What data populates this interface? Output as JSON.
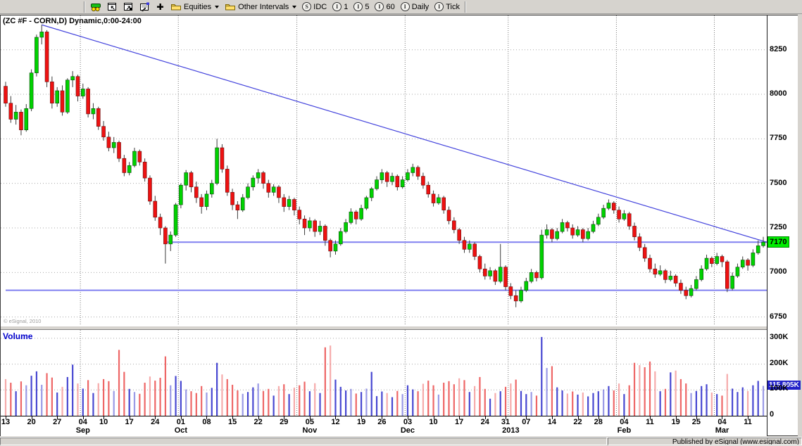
{
  "toolbar": {
    "equities_label": "Equities",
    "other_intervals_label": "Other Intervals",
    "idc_label": "IDC",
    "interval_1": "1",
    "interval_5": "5",
    "interval_60": "60",
    "interval_daily": "Daily",
    "interval_tick": "Tick"
  },
  "chart": {
    "title": "(ZC #F - CORN,D) Dynamic,0:00-24:00",
    "copyright": "© eSignal, 2010",
    "volume_label": "Volume",
    "last_price_tag": "7170",
    "last_volume_tag": "115.805K"
  },
  "status_bar": {
    "text": "Published by eSignal (www.esignal.com)"
  },
  "colors": {
    "up": "#00d200",
    "up_stroke": "#114411",
    "down": "#ee1111",
    "down_stroke": "#661111",
    "wick": "#3c3c3c",
    "vol_up": "#4747d1",
    "vol_down": "#ee6666",
    "trend": "#4444dd",
    "hline": "#8080f0",
    "grid": "#a8a8a8",
    "price_tag_bg": "#00ee00",
    "vol_tag_bg": "#2222c8"
  },
  "chart_data": {
    "type": "candlestick-with-volume",
    "symbol": "ZC #F - CORN, Daily",
    "price_axis": {
      "ticks": [
        8250,
        8000,
        7750,
        7500,
        7250,
        7000,
        6750
      ],
      "last_price": 7170
    },
    "volume_axis": {
      "ticks": [
        [
          300,
          "300K"
        ],
        [
          200,
          "200K"
        ],
        [
          100,
          "100K"
        ],
        [
          0,
          "0"
        ]
      ],
      "last_volume_k": 115.805
    },
    "x_labels": [
      [
        0,
        "13"
      ],
      [
        5,
        "20"
      ],
      [
        10,
        "27"
      ],
      [
        15,
        "04"
      ],
      [
        19,
        "10"
      ],
      [
        24,
        "17"
      ],
      [
        29,
        "24"
      ],
      [
        34,
        "01"
      ],
      [
        39,
        "08"
      ],
      [
        44,
        "15"
      ],
      [
        49,
        "22"
      ],
      [
        54,
        "29"
      ],
      [
        59,
        "05"
      ],
      [
        64,
        "12"
      ],
      [
        69,
        "19"
      ],
      [
        73,
        "26"
      ],
      [
        78,
        "03"
      ],
      [
        83,
        "10"
      ],
      [
        88,
        "17"
      ],
      [
        93,
        "24"
      ],
      [
        97,
        "31"
      ],
      [
        101,
        "07"
      ],
      [
        106,
        "14"
      ],
      [
        111,
        "22"
      ],
      [
        115,
        "28"
      ],
      [
        120,
        "04"
      ],
      [
        125,
        "11"
      ],
      [
        130,
        "19"
      ],
      [
        134,
        "25"
      ],
      [
        139,
        "04"
      ],
      [
        144,
        "11"
      ]
    ],
    "month_labels": [
      [
        15,
        "Sep"
      ],
      [
        34,
        "Oct"
      ],
      [
        59,
        "Nov"
      ],
      [
        78,
        "Dec"
      ],
      [
        98,
        "2013"
      ],
      [
        120,
        "Feb"
      ],
      [
        139,
        "Mar"
      ]
    ],
    "month_dividers": [
      15,
      34,
      57,
      78,
      98,
      119,
      138
    ],
    "overlays": {
      "trendline": {
        "from_index": 7,
        "from_price": 8390,
        "to_price": 7170
      },
      "hlines": [
        {
          "price": 7170,
          "from_index": 31
        },
        {
          "price": 6900,
          "from_index": 0
        }
      ]
    },
    "candles_format": [
      "open",
      "high",
      "low",
      "close",
      "volume_k"
    ],
    "candles": [
      [
        8045,
        8070,
        7930,
        7950,
        142
      ],
      [
        7950,
        7990,
        7840,
        7860,
        128
      ],
      [
        7860,
        7940,
        7830,
        7900,
        95
      ],
      [
        7900,
        7915,
        7770,
        7800,
        133
      ],
      [
        7800,
        7945,
        7790,
        7920,
        118
      ],
      [
        7920,
        8140,
        7905,
        8120,
        155
      ],
      [
        8120,
        8335,
        8100,
        8320,
        172
      ],
      [
        8320,
        8390,
        8280,
        8350,
        120
      ],
      [
        8350,
        8360,
        8040,
        8070,
        165
      ],
      [
        8070,
        8100,
        7920,
        7950,
        148
      ],
      [
        7950,
        8040,
        7930,
        8020,
        90
      ],
      [
        8020,
        8050,
        7880,
        7900,
        112
      ],
      [
        7900,
        8090,
        7890,
        8080,
        150
      ],
      [
        8080,
        8130,
        8040,
        8100,
        198
      ],
      [
        8100,
        8110,
        7960,
        7990,
        125
      ],
      [
        7990,
        8060,
        7975,
        8030,
        105
      ],
      [
        8030,
        8040,
        7870,
        7890,
        138
      ],
      [
        7890,
        7950,
        7860,
        7920,
        88
      ],
      [
        7920,
        7930,
        7800,
        7820,
        126
      ],
      [
        7820,
        7850,
        7740,
        7760,
        142
      ],
      [
        7760,
        7790,
        7680,
        7700,
        134
      ],
      [
        7700,
        7760,
        7670,
        7730,
        96
      ],
      [
        7730,
        7740,
        7620,
        7640,
        255
      ],
      [
        7640,
        7660,
        7540,
        7560,
        170
      ],
      [
        7560,
        7620,
        7545,
        7600,
        104
      ],
      [
        7600,
        7700,
        7590,
        7680,
        92
      ],
      [
        7680,
        7690,
        7600,
        7620,
        85
      ],
      [
        7620,
        7640,
        7510,
        7530,
        128
      ],
      [
        7530,
        7545,
        7380,
        7400,
        152
      ],
      [
        7400,
        7430,
        7290,
        7310,
        136
      ],
      [
        7310,
        7330,
        7210,
        7250,
        147
      ],
      [
        7250,
        7260,
        7050,
        7160,
        230
      ],
      [
        7160,
        7230,
        7120,
        7210,
        118
      ],
      [
        7210,
        7390,
        7200,
        7380,
        154
      ],
      [
        7380,
        7500,
        7360,
        7490,
        135
      ],
      [
        7490,
        7575,
        7460,
        7560,
        102
      ],
      [
        7560,
        7570,
        7450,
        7480,
        95
      ],
      [
        7480,
        7510,
        7390,
        7420,
        88
      ],
      [
        7420,
        7440,
        7330,
        7370,
        115
      ],
      [
        7370,
        7460,
        7350,
        7440,
        90
      ],
      [
        7440,
        7520,
        7420,
        7500,
        108
      ],
      [
        7500,
        7750,
        7490,
        7700,
        205
      ],
      [
        7700,
        7720,
        7560,
        7580,
        160
      ],
      [
        7580,
        7600,
        7430,
        7450,
        142
      ],
      [
        7450,
        7470,
        7350,
        7380,
        120
      ],
      [
        7380,
        7400,
        7300,
        7350,
        98
      ],
      [
        7350,
        7440,
        7340,
        7420,
        85
      ],
      [
        7420,
        7500,
        7410,
        7480,
        92
      ],
      [
        7480,
        7545,
        7460,
        7530,
        110
      ],
      [
        7530,
        7580,
        7500,
        7560,
        125
      ],
      [
        7560,
        7570,
        7470,
        7500,
        96
      ],
      [
        7500,
        7520,
        7420,
        7450,
        104
      ],
      [
        7450,
        7495,
        7430,
        7480,
        78
      ],
      [
        7480,
        7490,
        7390,
        7420,
        115
      ],
      [
        7420,
        7440,
        7340,
        7370,
        122
      ],
      [
        7370,
        7430,
        7350,
        7410,
        84
      ],
      [
        7410,
        7420,
        7320,
        7350,
        109
      ],
      [
        7350,
        7370,
        7270,
        7300,
        118
      ],
      [
        7300,
        7320,
        7210,
        7250,
        132
      ],
      [
        7250,
        7310,
        7230,
        7290,
        95
      ],
      [
        7290,
        7300,
        7200,
        7230,
        126
      ],
      [
        7230,
        7290,
        7210,
        7260,
        88
      ],
      [
        7260,
        7270,
        7150,
        7180,
        265
      ],
      [
        7180,
        7190,
        7085,
        7120,
        272
      ],
      [
        7120,
        7180,
        7100,
        7160,
        140
      ],
      [
        7160,
        7250,
        7150,
        7230,
        112
      ],
      [
        7230,
        7300,
        7220,
        7280,
        98
      ],
      [
        7280,
        7360,
        7270,
        7340,
        104
      ],
      [
        7340,
        7350,
        7270,
        7300,
        86
      ],
      [
        7300,
        7380,
        7290,
        7360,
        92
      ],
      [
        7360,
        7430,
        7350,
        7420,
        105
      ],
      [
        7420,
        7480,
        7400,
        7470,
        170
      ],
      [
        7470,
        7540,
        7460,
        7520,
        76
      ],
      [
        7520,
        7580,
        7500,
        7560,
        94
      ],
      [
        7560,
        7570,
        7480,
        7510,
        88
      ],
      [
        7510,
        7560,
        7490,
        7540,
        72
      ],
      [
        7540,
        7550,
        7460,
        7480,
        96
      ],
      [
        7480,
        7540,
        7470,
        7520,
        84
      ],
      [
        7520,
        7580,
        7510,
        7560,
        118
      ],
      [
        7560,
        7610,
        7540,
        7590,
        102
      ],
      [
        7590,
        7600,
        7520,
        7540,
        95
      ],
      [
        7540,
        7560,
        7470,
        7490,
        124
      ],
      [
        7490,
        7510,
        7420,
        7440,
        136
      ],
      [
        7440,
        7460,
        7370,
        7390,
        118
      ],
      [
        7390,
        7440,
        7380,
        7420,
        82
      ],
      [
        7420,
        7430,
        7330,
        7350,
        128
      ],
      [
        7350,
        7370,
        7270,
        7290,
        134
      ],
      [
        7290,
        7310,
        7220,
        7240,
        122
      ],
      [
        7240,
        7250,
        7160,
        7180,
        145
      ],
      [
        7180,
        7200,
        7110,
        7130,
        138
      ],
      [
        7130,
        7180,
        7110,
        7160,
        92
      ],
      [
        7160,
        7170,
        7070,
        7090,
        115
      ],
      [
        7090,
        7100,
        7000,
        7020,
        150
      ],
      [
        7020,
        7050,
        6960,
        6980,
        104
      ],
      [
        6980,
        7030,
        6960,
        7010,
        66
      ],
      [
        7010,
        7020,
        6930,
        6950,
        88
      ],
      [
        6950,
        7160,
        6940,
        7030,
        95
      ],
      [
        7030,
        7040,
        6900,
        6920,
        112
      ],
      [
        6920,
        6940,
        6850,
        6870,
        125
      ],
      [
        6870,
        6900,
        6805,
        6840,
        140
      ],
      [
        6840,
        6920,
        6830,
        6900,
        96
      ],
      [
        6900,
        6970,
        6890,
        6950,
        84
      ],
      [
        6950,
        7020,
        6940,
        7000,
        92
      ],
      [
        7000,
        7010,
        6950,
        6970,
        78
      ],
      [
        6970,
        7240,
        6960,
        7210,
        305
      ],
      [
        7210,
        7270,
        7190,
        7240,
        185
      ],
      [
        7240,
        7250,
        7170,
        7190,
        192
      ],
      [
        7190,
        7250,
        7180,
        7230,
        110
      ],
      [
        7230,
        7300,
        7220,
        7280,
        98
      ],
      [
        7280,
        7290,
        7230,
        7250,
        86
      ],
      [
        7250,
        7270,
        7190,
        7210,
        94
      ],
      [
        7210,
        7260,
        7200,
        7240,
        82
      ],
      [
        7240,
        7250,
        7170,
        7190,
        90
      ],
      [
        7190,
        7250,
        7180,
        7230,
        75
      ],
      [
        7230,
        7290,
        7220,
        7270,
        88
      ],
      [
        7270,
        7330,
        7260,
        7310,
        95
      ],
      [
        7310,
        7380,
        7300,
        7360,
        102
      ],
      [
        7360,
        7410,
        7350,
        7390,
        115
      ],
      [
        7390,
        7400,
        7330,
        7350,
        98
      ],
      [
        7350,
        7370,
        7280,
        7300,
        125
      ],
      [
        7300,
        7350,
        7290,
        7330,
        84
      ],
      [
        7330,
        7340,
        7240,
        7260,
        118
      ],
      [
        7260,
        7280,
        7180,
        7200,
        205
      ],
      [
        7200,
        7220,
        7120,
        7140,
        196
      ],
      [
        7140,
        7160,
        7060,
        7080,
        188
      ],
      [
        7080,
        7100,
        7000,
        7020,
        210
      ],
      [
        7020,
        7050,
        6970,
        6990,
        172
      ],
      [
        6990,
        7040,
        6980,
        7010,
        95
      ],
      [
        7010,
        7020,
        6940,
        6960,
        104
      ],
      [
        6960,
        7010,
        6950,
        6980,
        168
      ],
      [
        6980,
        6990,
        6920,
        6940,
        175
      ],
      [
        6940,
        6960,
        6880,
        6900,
        142
      ],
      [
        6900,
        6920,
        6850,
        6870,
        125
      ],
      [
        6870,
        6930,
        6860,
        6910,
        88
      ],
      [
        6910,
        6980,
        6900,
        6960,
        96
      ],
      [
        6960,
        7040,
        6950,
        7020,
        115
      ],
      [
        7020,
        7100,
        7010,
        7080,
        122
      ],
      [
        7080,
        7090,
        7030,
        7050,
        90
      ],
      [
        7050,
        7110,
        7040,
        7090,
        84
      ],
      [
        7090,
        7100,
        7030,
        7060,
        78
      ],
      [
        7060,
        7070,
        6890,
        6910,
        162
      ],
      [
        6910,
        7000,
        6900,
        6980,
        105
      ],
      [
        6980,
        7050,
        6970,
        7030,
        92
      ],
      [
        7030,
        7090,
        7020,
        7070,
        110
      ],
      [
        7070,
        7080,
        7010,
        7040,
        96
      ],
      [
        7040,
        7130,
        7030,
        7110,
        118
      ],
      [
        7110,
        7180,
        7100,
        7150,
        135
      ],
      [
        7150,
        7200,
        7140,
        7170,
        115.805
      ]
    ]
  }
}
